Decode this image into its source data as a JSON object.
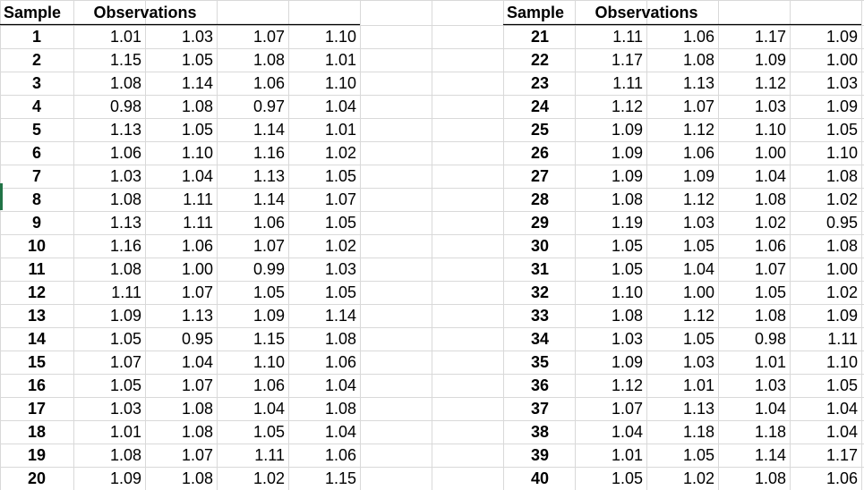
{
  "tables": [
    {
      "header_sample": "Sample",
      "header_obs": "Observations",
      "rows": [
        {
          "sample": "1",
          "obs": [
            "1.01",
            "1.03",
            "1.07",
            "1.10"
          ]
        },
        {
          "sample": "2",
          "obs": [
            "1.15",
            "1.05",
            "1.08",
            "1.01"
          ]
        },
        {
          "sample": "3",
          "obs": [
            "1.08",
            "1.14",
            "1.06",
            "1.10"
          ]
        },
        {
          "sample": "4",
          "obs": [
            "0.98",
            "1.08",
            "0.97",
            "1.04"
          ]
        },
        {
          "sample": "5",
          "obs": [
            "1.13",
            "1.05",
            "1.14",
            "1.01"
          ]
        },
        {
          "sample": "6",
          "obs": [
            "1.06",
            "1.10",
            "1.16",
            "1.02"
          ]
        },
        {
          "sample": "7",
          "obs": [
            "1.03",
            "1.04",
            "1.13",
            "1.05"
          ]
        },
        {
          "sample": "8",
          "obs": [
            "1.08",
            "1.11",
            "1.14",
            "1.07"
          ]
        },
        {
          "sample": "9",
          "obs": [
            "1.13",
            "1.11",
            "1.06",
            "1.05"
          ]
        },
        {
          "sample": "10",
          "obs": [
            "1.16",
            "1.06",
            "1.07",
            "1.02"
          ]
        },
        {
          "sample": "11",
          "obs": [
            "1.08",
            "1.00",
            "0.99",
            "1.03"
          ]
        },
        {
          "sample": "12",
          "obs": [
            "1.11",
            "1.07",
            "1.05",
            "1.05"
          ]
        },
        {
          "sample": "13",
          "obs": [
            "1.09",
            "1.13",
            "1.09",
            "1.14"
          ]
        },
        {
          "sample": "14",
          "obs": [
            "1.05",
            "0.95",
            "1.15",
            "1.08"
          ]
        },
        {
          "sample": "15",
          "obs": [
            "1.07",
            "1.04",
            "1.10",
            "1.06"
          ]
        },
        {
          "sample": "16",
          "obs": [
            "1.05",
            "1.07",
            "1.06",
            "1.04"
          ]
        },
        {
          "sample": "17",
          "obs": [
            "1.03",
            "1.08",
            "1.04",
            "1.08"
          ]
        },
        {
          "sample": "18",
          "obs": [
            "1.01",
            "1.08",
            "1.05",
            "1.04"
          ]
        },
        {
          "sample": "19",
          "obs": [
            "1.08",
            "1.07",
            "1.11",
            "1.06"
          ]
        },
        {
          "sample": "20",
          "obs": [
            "1.09",
            "1.08",
            "1.02",
            "1.15"
          ]
        }
      ]
    },
    {
      "header_sample": "Sample",
      "header_obs": "Observations",
      "rows": [
        {
          "sample": "21",
          "obs": [
            "1.11",
            "1.06",
            "1.17",
            "1.09"
          ]
        },
        {
          "sample": "22",
          "obs": [
            "1.17",
            "1.08",
            "1.09",
            "1.00"
          ]
        },
        {
          "sample": "23",
          "obs": [
            "1.11",
            "1.13",
            "1.12",
            "1.03"
          ]
        },
        {
          "sample": "24",
          "obs": [
            "1.12",
            "1.07",
            "1.03",
            "1.09"
          ]
        },
        {
          "sample": "25",
          "obs": [
            "1.09",
            "1.12",
            "1.10",
            "1.05"
          ]
        },
        {
          "sample": "26",
          "obs": [
            "1.09",
            "1.06",
            "1.00",
            "1.10"
          ]
        },
        {
          "sample": "27",
          "obs": [
            "1.09",
            "1.09",
            "1.04",
            "1.08"
          ]
        },
        {
          "sample": "28",
          "obs": [
            "1.08",
            "1.12",
            "1.08",
            "1.02"
          ]
        },
        {
          "sample": "29",
          "obs": [
            "1.19",
            "1.03",
            "1.02",
            "0.95"
          ]
        },
        {
          "sample": "30",
          "obs": [
            "1.05",
            "1.05",
            "1.06",
            "1.08"
          ]
        },
        {
          "sample": "31",
          "obs": [
            "1.05",
            "1.04",
            "1.07",
            "1.00"
          ]
        },
        {
          "sample": "32",
          "obs": [
            "1.10",
            "1.00",
            "1.05",
            "1.02"
          ]
        },
        {
          "sample": "33",
          "obs": [
            "1.08",
            "1.12",
            "1.08",
            "1.09"
          ]
        },
        {
          "sample": "34",
          "obs": [
            "1.03",
            "1.05",
            "0.98",
            "1.11"
          ]
        },
        {
          "sample": "35",
          "obs": [
            "1.09",
            "1.03",
            "1.01",
            "1.10"
          ]
        },
        {
          "sample": "36",
          "obs": [
            "1.12",
            "1.01",
            "1.03",
            "1.05"
          ]
        },
        {
          "sample": "37",
          "obs": [
            "1.07",
            "1.13",
            "1.04",
            "1.04"
          ]
        },
        {
          "sample": "38",
          "obs": [
            "1.04",
            "1.18",
            "1.18",
            "1.04"
          ]
        },
        {
          "sample": "39",
          "obs": [
            "1.01",
            "1.05",
            "1.14",
            "1.17"
          ]
        },
        {
          "sample": "40",
          "obs": [
            "1.05",
            "1.02",
            "1.08",
            "1.06"
          ]
        }
      ]
    }
  ],
  "colors": {
    "gridline": "#d9d9d9",
    "border": "#000000",
    "selection": "#217346"
  }
}
